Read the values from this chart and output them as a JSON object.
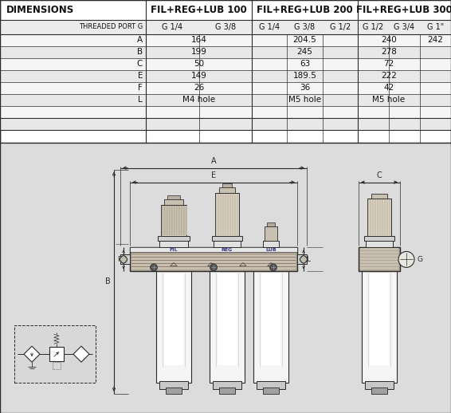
{
  "bg_color": "#d4d4d4",
  "table_bg": "#ffffff",
  "row_alt": "#e6e6e6",
  "border_color": "#444444",
  "text_color": "#111111",
  "col_groups": [
    "FIL+REG+LUB 100",
    "FIL+REG+LUB 200",
    "FIL+REG+LUB 300"
  ],
  "row_labels": [
    "A",
    "B",
    "C",
    "E",
    "F",
    "L"
  ],
  "data_100": [
    "164",
    "199",
    "50",
    "149",
    "26",
    "M4 hole"
  ],
  "data_200": [
    "204.5",
    "245",
    "63",
    "189.5",
    "36",
    "M5 hole"
  ],
  "data_300a": [
    "240",
    "278",
    "72",
    "222",
    "42",
    "M5 hole"
  ],
  "data_300b": [
    "242",
    "",
    "",
    "",
    "",
    ""
  ],
  "diagram_bg": "#dcdcdc",
  "lc": "#2a2a2a",
  "manifold_color": "#b0a898",
  "body_color": "#f0f0f0",
  "knob_color": "#d8d0c0",
  "dark_color": "#808070"
}
